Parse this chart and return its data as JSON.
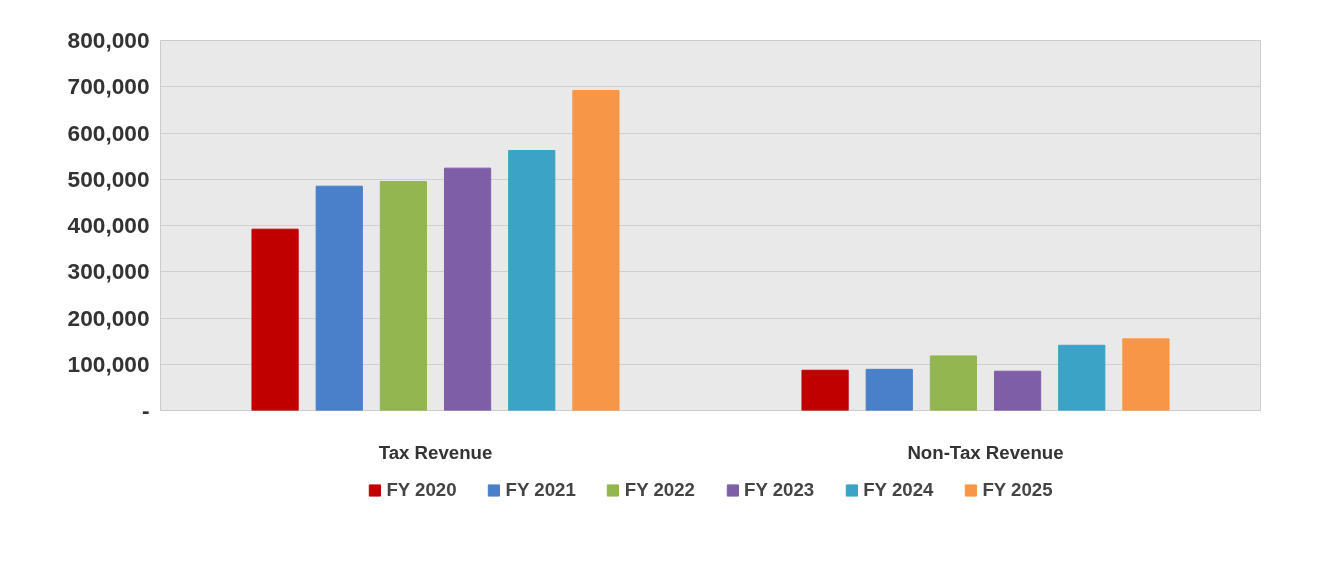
{
  "chart_data": {
    "type": "bar",
    "categories": [
      "Tax Revenue",
      "Non-Tax Revenue"
    ],
    "series": [
      {
        "name": "FY 2020",
        "color": "#c00000",
        "values": [
          392000,
          87000
        ]
      },
      {
        "name": "FY 2021",
        "color": "#4a7fca",
        "values": [
          485000,
          89000
        ]
      },
      {
        "name": "FY 2022",
        "color": "#93b650",
        "values": [
          495000,
          118000
        ]
      },
      {
        "name": "FY 2023",
        "color": "#7f5ea8",
        "values": [
          524000,
          85000
        ]
      },
      {
        "name": "FY 2024",
        "color": "#3aa3c6",
        "values": [
          562000,
          141000
        ]
      },
      {
        "name": "FY 2025",
        "color": "#f79646",
        "values": [
          692000,
          155000
        ]
      }
    ],
    "ylim": [
      0,
      800000
    ],
    "yticks": [
      {
        "value": 0,
        "label": "-"
      },
      {
        "value": 100000,
        "label": "100,000"
      },
      {
        "value": 200000,
        "label": "200,000"
      },
      {
        "value": 300000,
        "label": "300,000"
      },
      {
        "value": 400000,
        "label": "400,000"
      },
      {
        "value": 500000,
        "label": "500,000"
      },
      {
        "value": 600000,
        "label": "600,000"
      },
      {
        "value": 700000,
        "label": "700,000"
      },
      {
        "value": 800000,
        "label": "800,000"
      }
    ],
    "grid": "y",
    "legend": "bottom"
  }
}
